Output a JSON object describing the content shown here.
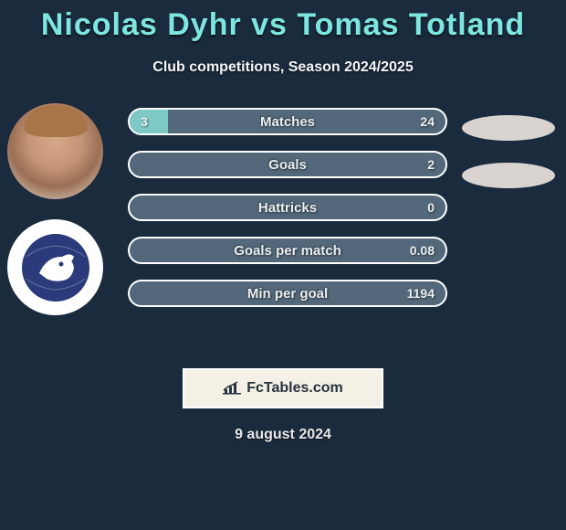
{
  "title": "Nicolas Dyhr vs Tomas Totland",
  "subtitle": "Club competitions, Season 2024/2025",
  "date": "9 august 2024",
  "footer_label": "FcTables.com",
  "colors": {
    "background": "#1a2b3d",
    "title_color": "#7de6e0",
    "fill_a": "#7ec9c5",
    "bar_bg": "#53687a",
    "bar_border": "#ffffff",
    "ellipse": "#d8d3d0",
    "footer_bg": "#f5f0e6",
    "footer_text": "#26333f"
  },
  "avatars": [
    {
      "kind": "photo",
      "alt": "Nicolas Dyhr"
    },
    {
      "kind": "crest",
      "alt": "Tomas Totland club crest",
      "crest_color": "#2a3a7a"
    }
  ],
  "stats": [
    {
      "label": "Matches",
      "a": "3",
      "b": "24",
      "fill_a_pct": 12,
      "fill_b_pct": 88
    },
    {
      "label": "Goals",
      "a": "",
      "b": "2",
      "fill_a_pct": 0,
      "fill_b_pct": 100
    },
    {
      "label": "Hattricks",
      "a": "",
      "b": "0",
      "fill_a_pct": 0,
      "fill_b_pct": 0
    },
    {
      "label": "Goals per match",
      "a": "",
      "b": "0.08",
      "fill_a_pct": 0,
      "fill_b_pct": 100
    },
    {
      "label": "Min per goal",
      "a": "",
      "b": "1194",
      "fill_a_pct": 0,
      "fill_b_pct": 100
    }
  ],
  "ellipse_count": 2
}
